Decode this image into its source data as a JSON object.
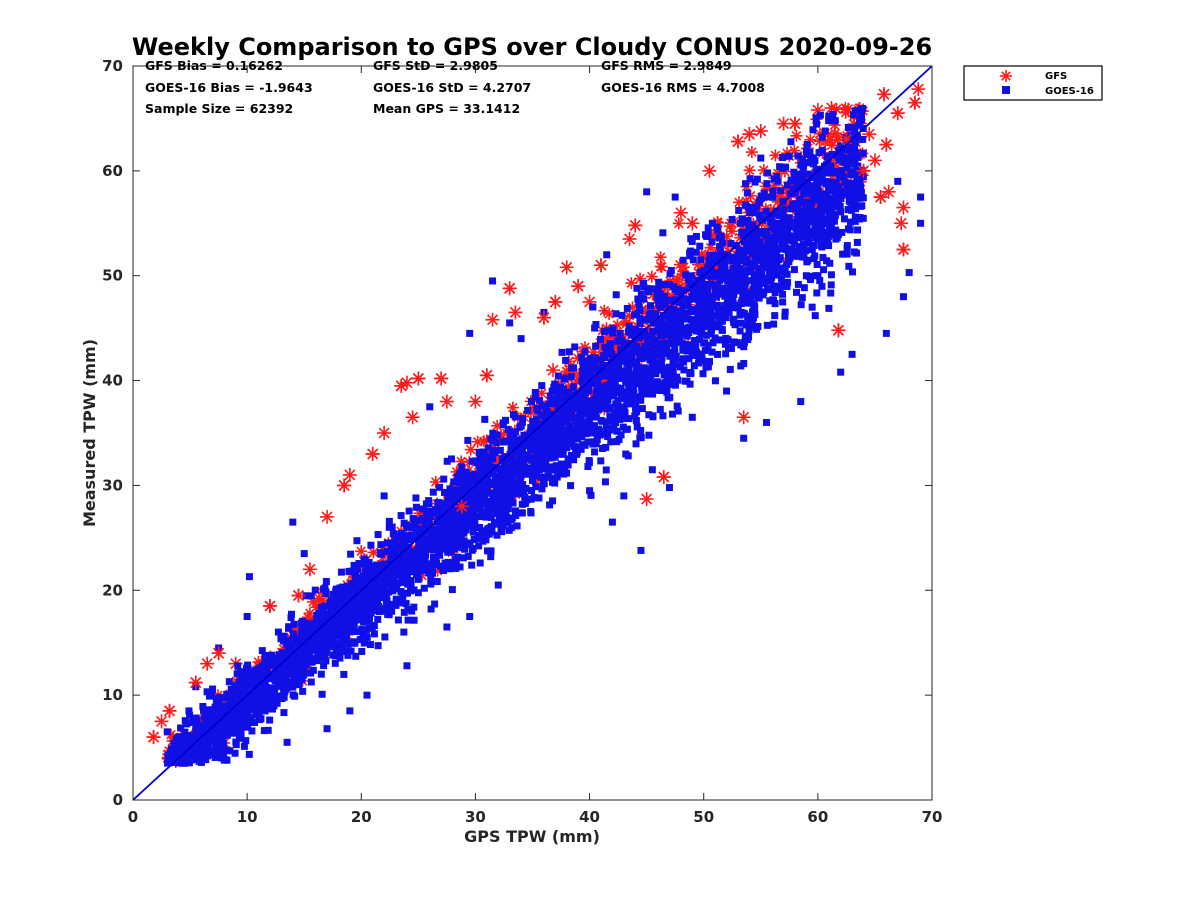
{
  "chart_data": {
    "type": "scatter",
    "title": "Weekly Comparison to GPS over Cloudy CONUS 2020-09-26",
    "xlabel": "GPS TPW (mm)",
    "ylabel": "Measured TPW (mm)",
    "xlim": [
      0,
      70
    ],
    "ylim": [
      0,
      70
    ],
    "xticks": [
      "0",
      "10",
      "20",
      "30",
      "40",
      "50",
      "60",
      "70"
    ],
    "yticks": [
      "0",
      "10",
      "20",
      "30",
      "40",
      "50",
      "60",
      "70"
    ],
    "grid": false,
    "legend_position": "outside-top-right",
    "reference_line": {
      "from": [
        0,
        0
      ],
      "to": [
        70,
        70
      ],
      "color": "#0000cc"
    },
    "stats": [
      [
        "GFS Bias = 0.16262",
        "GFS StD = 2.9805",
        "GFS RMS = 2.9849"
      ],
      [
        "GOES-16 Bias = -1.9643",
        "GOES-16 StD = 4.2707",
        "GOES-16 RMS = 4.7008"
      ],
      [
        "Sample Size = 62392",
        "Mean GPS = 33.1412",
        ""
      ]
    ],
    "series": [
      {
        "name": "GFS",
        "marker": "asterisk",
        "color": "#ff1a1a",
        "bias": 0.16,
        "spread": 2.98,
        "sample_points": [
          [
            1.8,
            6.0
          ],
          [
            2.5,
            7.5
          ],
          [
            3.2,
            8.5
          ],
          [
            4.1,
            3.8
          ],
          [
            5.5,
            11.2
          ],
          [
            6.5,
            13.0
          ],
          [
            7.5,
            14.0
          ],
          [
            9.0,
            13.0
          ],
          [
            12.0,
            18.5
          ],
          [
            15.5,
            22.0
          ],
          [
            14.5,
            19.5
          ],
          [
            17.0,
            27.0
          ],
          [
            18.5,
            30.0
          ],
          [
            19.0,
            31.0
          ],
          [
            21.0,
            33.0
          ],
          [
            22.0,
            35.0
          ],
          [
            23.5,
            39.5
          ],
          [
            24.0,
            39.8
          ],
          [
            25.0,
            40.2
          ],
          [
            24.5,
            36.5
          ],
          [
            27.0,
            40.2
          ],
          [
            27.5,
            38.0
          ],
          [
            28.8,
            28.0
          ],
          [
            30.0,
            38.0
          ],
          [
            31.0,
            40.5
          ],
          [
            31.5,
            45.8
          ],
          [
            33.0,
            48.8
          ],
          [
            33.5,
            46.5
          ],
          [
            37.0,
            47.5
          ],
          [
            38.0,
            50.8
          ],
          [
            39.0,
            49.0
          ],
          [
            40.0,
            47.5
          ],
          [
            41.0,
            51.0
          ],
          [
            43.5,
            53.5
          ],
          [
            44.0,
            54.8
          ],
          [
            45.0,
            28.7
          ],
          [
            46.5,
            30.8
          ],
          [
            50.5,
            60.0
          ],
          [
            53.0,
            62.8
          ],
          [
            53.5,
            36.5
          ],
          [
            54.0,
            63.5
          ],
          [
            57.0,
            64.5
          ],
          [
            58.0,
            64.5
          ],
          [
            61.2,
            66.0
          ],
          [
            61.8,
            44.8
          ],
          [
            63.0,
            64.0
          ],
          [
            64.0,
            60.0
          ],
          [
            65.0,
            61.0
          ],
          [
            65.8,
            67.3
          ],
          [
            66.2,
            58.0
          ],
          [
            67.0,
            65.5
          ],
          [
            67.3,
            55.0
          ],
          [
            67.5,
            52.5
          ],
          [
            67.5,
            56.5
          ],
          [
            68.5,
            66.5
          ],
          [
            68.8,
            67.8
          ],
          [
            66.0,
            62.5
          ],
          [
            64.5,
            63.5
          ],
          [
            65.5,
            57.5
          ],
          [
            60.0,
            65.8
          ],
          [
            62.5,
            63.0
          ],
          [
            55.0,
            63.8
          ],
          [
            49.0,
            55.0
          ],
          [
            48.0,
            56.0
          ],
          [
            36.0,
            46.0
          ],
          [
            36.8,
            41.0
          ]
        ]
      },
      {
        "name": "GOES-16",
        "marker": "square",
        "color": "#1010e6",
        "bias": -1.96,
        "spread": 4.27,
        "sample_points": [
          [
            4.5,
            3.5
          ],
          [
            8.0,
            3.8
          ],
          [
            10.2,
            21.3
          ],
          [
            13.5,
            5.5
          ],
          [
            15.0,
            23.5
          ],
          [
            16.5,
            12.0
          ],
          [
            17.0,
            6.8
          ],
          [
            19.0,
            8.5
          ],
          [
            20.5,
            10.0
          ],
          [
            24.0,
            12.8
          ],
          [
            27.5,
            16.5
          ],
          [
            29.5,
            17.5
          ],
          [
            32.0,
            20.5
          ],
          [
            33.0,
            45.5
          ],
          [
            34.0,
            44.0
          ],
          [
            36.0,
            46.5
          ],
          [
            40.0,
            29.5
          ],
          [
            42.0,
            26.5
          ],
          [
            43.0,
            29.0
          ],
          [
            44.5,
            23.8
          ],
          [
            45.5,
            31.5
          ],
          [
            47.0,
            29.8
          ],
          [
            49.0,
            36.5
          ],
          [
            52.0,
            39.0
          ],
          [
            53.5,
            34.5
          ],
          [
            55.5,
            36.0
          ],
          [
            58.5,
            38.0
          ],
          [
            59.5,
            47.0
          ],
          [
            62.0,
            40.8
          ],
          [
            63.0,
            42.5
          ],
          [
            66.0,
            44.5
          ],
          [
            67.5,
            48.0
          ],
          [
            68.0,
            50.3
          ],
          [
            69.0,
            57.5
          ],
          [
            69.0,
            55.0
          ],
          [
            67.0,
            59.0
          ],
          [
            61.5,
            58.0
          ],
          [
            56.5,
            49.0
          ],
          [
            47.5,
            57.5
          ],
          [
            45.0,
            58.0
          ],
          [
            41.5,
            52.0
          ],
          [
            31.5,
            49.5
          ],
          [
            29.5,
            44.5
          ],
          [
            26.0,
            37.5
          ],
          [
            22.0,
            29.0
          ],
          [
            14.0,
            26.5
          ],
          [
            10.0,
            17.5
          ],
          [
            7.5,
            14.5
          ],
          [
            5.5,
            10.8
          ],
          [
            3.0,
            6.5
          ]
        ]
      }
    ]
  }
}
